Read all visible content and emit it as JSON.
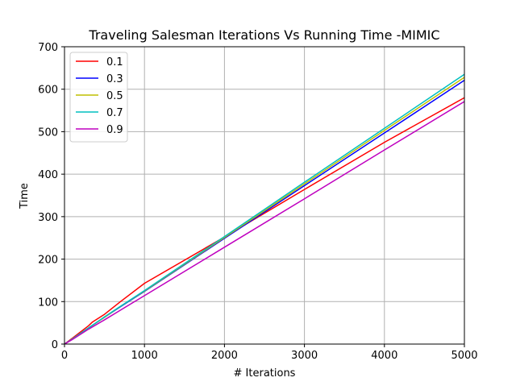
{
  "chart_data": {
    "type": "line",
    "title": "Traveling Salesman Iterations Vs Running Time -MIMIC",
    "xlabel": "# Iterations",
    "ylabel": "Time",
    "xlim": [
      0,
      5000
    ],
    "ylim": [
      0,
      700
    ],
    "xticks": [
      "0",
      "1000",
      "2000",
      "3000",
      "4000",
      "5000"
    ],
    "yticks": [
      "0",
      "100",
      "200",
      "300",
      "400",
      "500",
      "600",
      "700"
    ],
    "grid": true,
    "legend_position": "top-left",
    "series": [
      {
        "name": "0.1",
        "color": "#ff0000",
        "points": [
          [
            0,
            0
          ],
          [
            100,
            14
          ],
          [
            300,
            43
          ],
          [
            350,
            52
          ],
          [
            500,
            70
          ],
          [
            700,
            100
          ],
          [
            1000,
            143
          ],
          [
            2000,
            252
          ],
          [
            3000,
            364
          ],
          [
            4000,
            475
          ],
          [
            5000,
            580
          ]
        ]
      },
      {
        "name": "0.3",
        "color": "#0000ff",
        "points": [
          [
            0,
            0
          ],
          [
            100,
            12
          ],
          [
            300,
            38
          ],
          [
            500,
            63
          ],
          [
            700,
            88
          ],
          [
            1000,
            124
          ],
          [
            2000,
            249
          ],
          [
            3000,
            373
          ],
          [
            4000,
            497
          ],
          [
            5000,
            621
          ]
        ]
      },
      {
        "name": "0.5",
        "color": "#bfbf00",
        "points": [
          [
            0,
            0
          ],
          [
            100,
            12
          ],
          [
            300,
            38
          ],
          [
            500,
            63
          ],
          [
            700,
            89
          ],
          [
            1000,
            125
          ],
          [
            2000,
            251
          ],
          [
            3000,
            377
          ],
          [
            4000,
            503
          ],
          [
            5000,
            628
          ]
        ]
      },
      {
        "name": "0.7",
        "color": "#00bfbf",
        "points": [
          [
            0,
            0
          ],
          [
            100,
            12
          ],
          [
            300,
            38
          ],
          [
            500,
            64
          ],
          [
            700,
            89
          ],
          [
            1000,
            126
          ],
          [
            2000,
            253
          ],
          [
            3000,
            381
          ],
          [
            4000,
            508
          ],
          [
            5000,
            635
          ]
        ]
      },
      {
        "name": "0.9",
        "color": "#bf00bf",
        "points": [
          [
            0,
            0
          ],
          [
            100,
            11
          ],
          [
            300,
            35
          ],
          [
            500,
            57
          ],
          [
            700,
            80
          ],
          [
            1000,
            114
          ],
          [
            2000,
            228
          ],
          [
            3000,
            342
          ],
          [
            4000,
            457
          ],
          [
            5000,
            571
          ]
        ]
      }
    ]
  }
}
